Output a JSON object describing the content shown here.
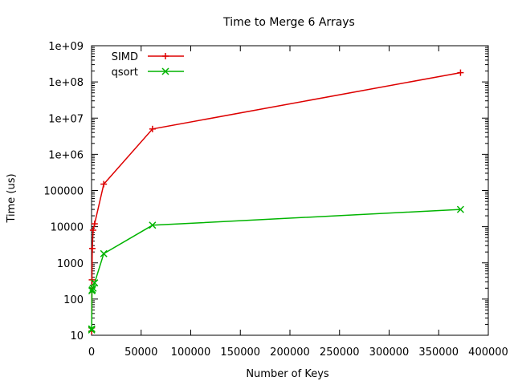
{
  "chart_data": {
    "type": "line",
    "title": "Time to Merge 6 Arrays",
    "xlabel": "Number of Keys",
    "ylabel": "Time (us)",
    "xlim": [
      0,
      400000
    ],
    "ylim": [
      10,
      1000000000
    ],
    "y_scale": "log",
    "x_ticks": [
      0,
      50000,
      100000,
      150000,
      200000,
      250000,
      300000,
      350000,
      400000
    ],
    "y_ticks": [
      10,
      100,
      1000,
      10000,
      100000,
      1000000,
      10000000,
      100000000,
      1000000000
    ],
    "y_tick_labels": [
      "10",
      "100",
      "1000",
      "10000",
      "100000",
      "1e+06",
      "1e+07",
      "1e+08",
      "1e+09"
    ],
    "legend_position": "top-left",
    "grid": false,
    "series": [
      {
        "name": "SIMD",
        "color": "#dd0000",
        "marker": "plus",
        "x": [
          96,
          192,
          384,
          768,
          1536,
          3072,
          12288,
          61440,
          372000
        ],
        "y": [
          13,
          16,
          340,
          2500,
          8000,
          12000,
          150000,
          5000000,
          180000000
        ]
      },
      {
        "name": "qsort",
        "color": "#00b400",
        "marker": "cross",
        "x": [
          96,
          192,
          384,
          768,
          1536,
          3072,
          12288,
          61440,
          372000
        ],
        "y": [
          14,
          15,
          170,
          180,
          200,
          280,
          1800,
          11000,
          30000
        ]
      }
    ]
  }
}
